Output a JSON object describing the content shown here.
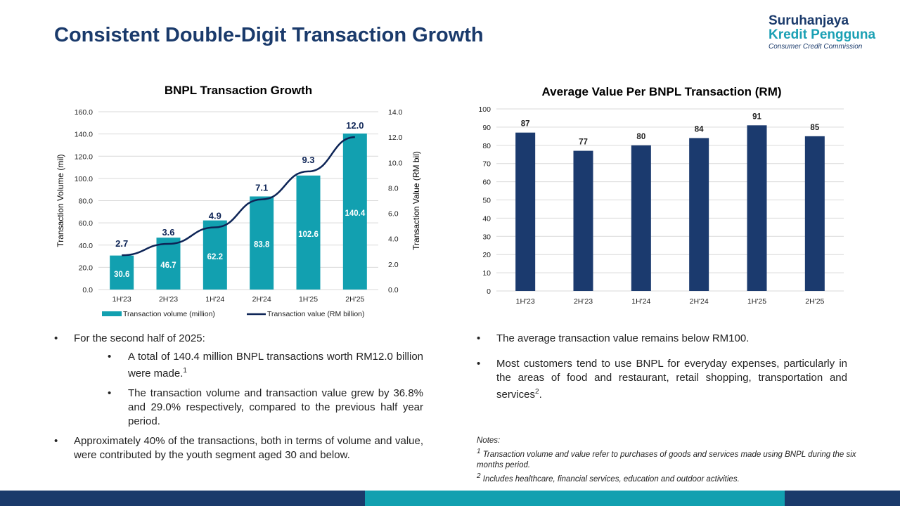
{
  "page": {
    "title": "Consistent Double-Digit Transaction Growth",
    "logo": {
      "line1": "Suruhanjaya",
      "line2": "Kredit Pengguna",
      "line3": "Consumer Credit Commission"
    }
  },
  "colors": {
    "navy": "#1a3a6b",
    "teal": "#12a0b0",
    "bar_navy": "#1b3a6e",
    "line_navy": "#0d2456"
  },
  "chart_data": [
    {
      "type": "bar",
      "title": "BNPL Transaction Growth",
      "categories": [
        "1H'23",
        "2H'23",
        "1H'24",
        "2H'24",
        "1H'25",
        "2H'25"
      ],
      "ylabel": "Transaction Volume (mil)",
      "y2label": "Transaction Value (RM bil)",
      "ylim": [
        0,
        160
      ],
      "y2lim": [
        0,
        14
      ],
      "yticks": [
        "0.0",
        "20.0",
        "40.0",
        "60.0",
        "80.0",
        "100.0",
        "120.0",
        "140.0",
        "160.0"
      ],
      "y2ticks": [
        "0.0",
        "2.0",
        "4.0",
        "6.0",
        "8.0",
        "10.0",
        "12.0",
        "14.0"
      ],
      "legend_position": "bottom",
      "series": [
        {
          "name": "Transaction volume (million)",
          "kind": "bar",
          "axis": "left",
          "values": [
            30.6,
            46.7,
            62.2,
            83.8,
            102.6,
            140.4
          ],
          "labels": [
            "30.6",
            "46.7",
            "62.2",
            "83.8",
            "102.6",
            "140.4"
          ]
        },
        {
          "name": "Transaction value (RM billion)",
          "kind": "line",
          "axis": "right",
          "values": [
            2.7,
            3.6,
            4.9,
            7.1,
            9.3,
            12.0
          ],
          "labels": [
            "2.7",
            "3.6",
            "4.9",
            "7.1",
            "9.3",
            "12.0"
          ]
        }
      ]
    },
    {
      "type": "bar",
      "title": "Average Value Per BNPL Transaction (RM)",
      "categories": [
        "1H'23",
        "2H'23",
        "1H'24",
        "2H'24",
        "1H'25",
        "2H'25"
      ],
      "values": [
        87,
        77,
        80,
        84,
        91,
        85
      ],
      "labels": [
        "87",
        "77",
        "80",
        "84",
        "91",
        "85"
      ],
      "ylim": [
        0,
        100
      ],
      "yticks": [
        "0",
        "10",
        "20",
        "30",
        "40",
        "50",
        "60",
        "70",
        "80",
        "90",
        "100"
      ],
      "grid": true
    }
  ],
  "left_text": {
    "b1": "For the second half of 2025:",
    "s1": "A total of 140.4 million BNPL transactions worth RM12.0 billion were made.",
    "s1_sup": "1",
    "s2": "The transaction volume and transaction value grew by 36.8% and 29.0% respectively, compared to the previous half year period.",
    "b2": "Approximately 40% of the transactions, both in terms of volume and value, were contributed by the youth segment aged 30 and below."
  },
  "right_text": {
    "b1": "The average transaction value remains below RM100.",
    "b2": "Most customers tend to use BNPL for everyday expenses, particularly in the areas of food and restaurant, retail shopping, transportation and services",
    "b2_sup": "2",
    "b2_end": "."
  },
  "notes": {
    "heading": "Notes:",
    "n1_num": "1",
    "n1": " Transaction volume and value refer to purchases of goods and services made using BNPL during the six months period.",
    "n2_num": "2",
    "n2": "  Includes healthcare, financial services, education and outdoor activities."
  }
}
